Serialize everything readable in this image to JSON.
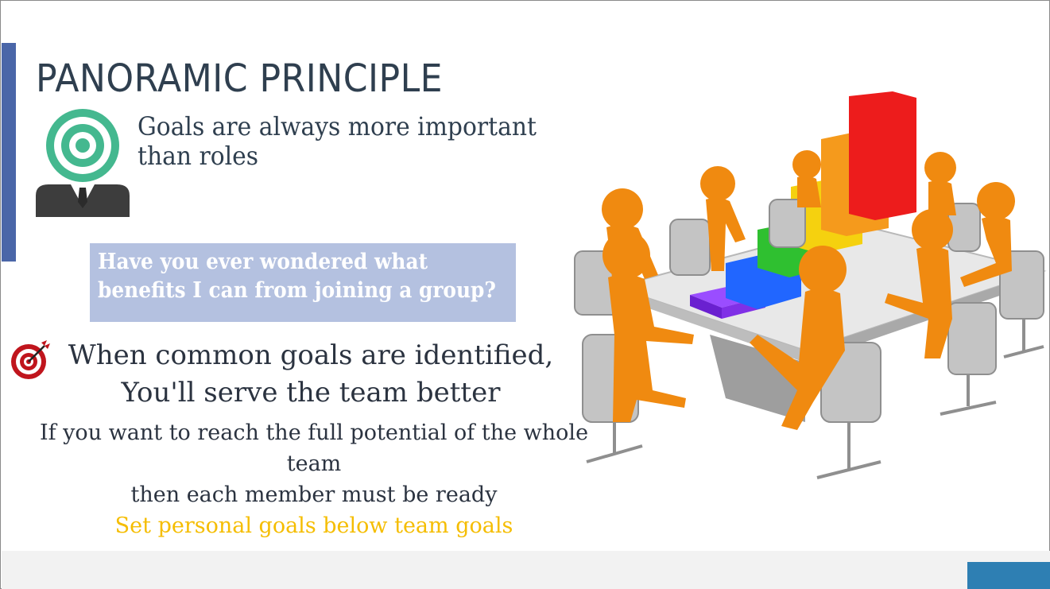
{
  "slide": {
    "title": "PANORAMIC PRINCIPLE",
    "goal_line_1": "Goals are always more important",
    "goal_line_2": "than roles",
    "question_line_1": "Have you ever wondered what",
    "question_line_2": "benefits I can from joining a group?",
    "common_line_1": "When common goals are identified,",
    "common_line_2": "You'll serve the team better",
    "potential_line_1": "If you want to reach the full potential of the whole",
    "potential_line_2": "team",
    "potential_line_3": "then each member must be ready",
    "personal_goals": "Set personal goals below team goals"
  },
  "icons": {
    "person": "person-with-target-head-icon",
    "target": "target-arrow-icon",
    "illustration": "team-meeting-bar-chart-illustration"
  },
  "colors": {
    "accent_bar": "#4a66a8",
    "question_box": "#b4c1e0",
    "highlight": "#f5bd00",
    "footer_square": "#2e7fb3"
  }
}
